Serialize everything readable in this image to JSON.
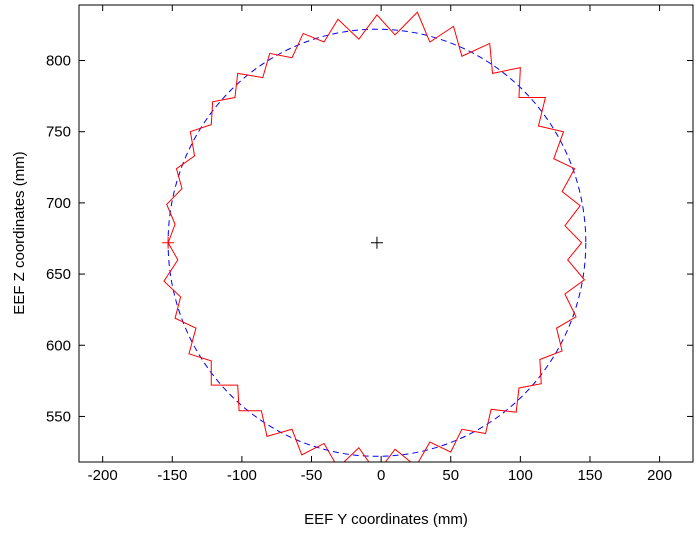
{
  "chart_data": {
    "type": "line",
    "xlabel": "EEF Y coordinates (mm)",
    "ylabel": "EEF Z coordinates (mm)",
    "xlim": [
      -217,
      224
    ],
    "ylim": [
      518,
      839
    ],
    "xticks": [
      -200,
      -150,
      -100,
      -50,
      0,
      50,
      100,
      150,
      200
    ],
    "yticks": [
      550,
      600,
      650,
      700,
      750,
      800
    ],
    "grid": false,
    "series": [
      {
        "color": "#ff0000",
        "x": [
          -153,
          -146,
          -156,
          -144,
          -148,
          -133,
          -138,
          -122,
          -122,
          -103,
          -102,
          -86,
          -82,
          -64,
          -57,
          -41,
          -31,
          -16,
          -3,
          10,
          25,
          35,
          50,
          58,
          75,
          79,
          97,
          99,
          115,
          114,
          130,
          126,
          140,
          132,
          146,
          134,
          144,
          132,
          143,
          130,
          139,
          124,
          131,
          113,
          118,
          99,
          100,
          80,
          78,
          58,
          52,
          35,
          26,
          10,
          -3,
          -16,
          -31,
          -41,
          -56,
          -64,
          -80,
          -85,
          -103,
          -105,
          -121,
          -122,
          -137,
          -134,
          -147,
          -143,
          -154,
          -148,
          -153
        ],
        "y": [
          672,
          660,
          645,
          634,
          619,
          612,
          594,
          589,
          572,
          572,
          554,
          554,
          536,
          541,
          523,
          531,
          514,
          528,
          510,
          527,
          515,
          532,
          525,
          541,
          538,
          555,
          553,
          570,
          573,
          590,
          596,
          612,
          620,
          636,
          646,
          660,
          672,
          684,
          698,
          708,
          724,
          731,
          750,
          754,
          774,
          774,
          795,
          791,
          812,
          803,
          824,
          813,
          834,
          818,
          832,
          815,
          829,
          813,
          819,
          802,
          805,
          788,
          791,
          774,
          771,
          755,
          750,
          733,
          724,
          710,
          699,
          685,
          672
        ]
      }
    ],
    "reference_circle": {
      "center_x": -3,
      "center_y": 672,
      "radius": 150,
      "color": "#0000ff"
    },
    "markers": [
      {
        "x": -153,
        "y": 672,
        "color": "#ff0000"
      },
      {
        "x": -3,
        "y": 672,
        "color": "#000000"
      }
    ]
  }
}
